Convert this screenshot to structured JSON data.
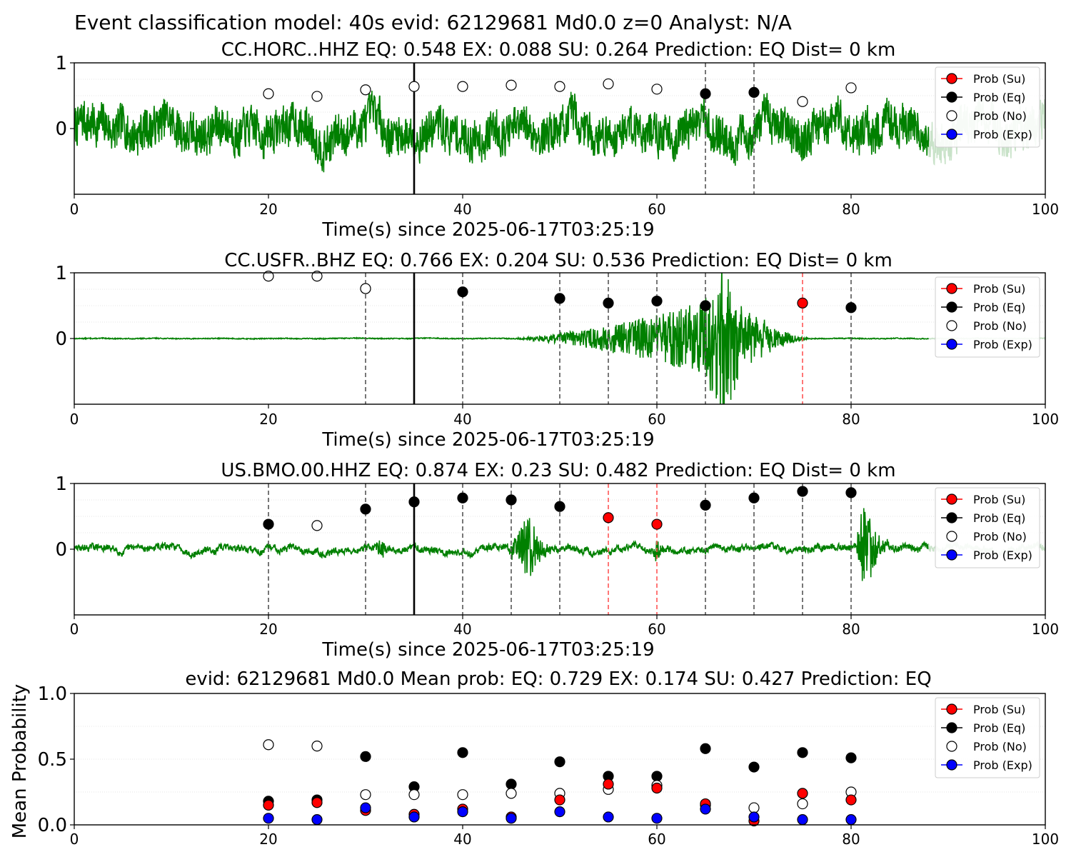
{
  "title": "Event classification model: 40s evid: 62129681 Md0.0 z=0 Analyst: N/A",
  "colors": {
    "waveform": "#008000",
    "waveform_faded": "#c8e2c8",
    "su": "#ff0000",
    "eq": "#000000",
    "no": "#ffffff",
    "exp": "#0000ff",
    "su_line": "#ff5555",
    "eq_line": "#555555"
  },
  "legend": [
    "Prob (Su)",
    "Prob (Eq)",
    "Prob (No)",
    "Prob (Exp)"
  ],
  "chart_data": [
    {
      "type": "scatter",
      "title": "CC.HORC..HHZ   EQ: 0.548  EX: 0.088  SU: 0.264   Prediction: EQ    Dist= 0 km",
      "xlabel": "Time(s) since 2025-06-17T03:25:19",
      "ylabel": "",
      "xlim": [
        0,
        100
      ],
      "ylim": [
        -1,
        1
      ],
      "x_ticks": [
        "0",
        "20",
        "40",
        "60",
        "80",
        "100"
      ],
      "y_ticks": [
        "0",
        "1"
      ],
      "pick_time": 35,
      "dashed_eq": [
        65,
        70
      ],
      "dashed_su": [],
      "trace": {
        "style": "noisy",
        "seed": 7,
        "noise": 0.26,
        "low": 0.22,
        "bursts": []
      },
      "points": [
        {
          "x": 20,
          "y": 0.53,
          "class": "no"
        },
        {
          "x": 25,
          "y": 0.49,
          "class": "no"
        },
        {
          "x": 30,
          "y": 0.59,
          "class": "no"
        },
        {
          "x": 35,
          "y": 0.64,
          "class": "no"
        },
        {
          "x": 40,
          "y": 0.64,
          "class": "no"
        },
        {
          "x": 45,
          "y": 0.66,
          "class": "no"
        },
        {
          "x": 50,
          "y": 0.64,
          "class": "no"
        },
        {
          "x": 55,
          "y": 0.68,
          "class": "no"
        },
        {
          "x": 60,
          "y": 0.6,
          "class": "no"
        },
        {
          "x": 65,
          "y": 0.53,
          "class": "eq"
        },
        {
          "x": 70,
          "y": 0.55,
          "class": "eq"
        },
        {
          "x": 75,
          "y": 0.41,
          "class": "no"
        },
        {
          "x": 80,
          "y": 0.62,
          "class": "no"
        }
      ]
    },
    {
      "type": "scatter",
      "title": "CC.USFR..BHZ   EQ: 0.766  EX: 0.204  SU: 0.536   Prediction: EQ    Dist= 0 km",
      "xlabel": "Time(s) since 2025-06-17T03:25:19",
      "ylabel": "",
      "xlim": [
        0,
        100
      ],
      "ylim": [
        -1,
        1
      ],
      "x_ticks": [
        "0",
        "20",
        "40",
        "60",
        "80",
        "100"
      ],
      "y_ticks": [
        "0",
        "1"
      ],
      "pick_time": 35,
      "dashed_eq": [
        30,
        40,
        50,
        55,
        60,
        65,
        80
      ],
      "dashed_su": [
        75
      ],
      "trace": {
        "style": "quiet",
        "seed": 13,
        "noise": 0.006,
        "low": 0.004,
        "bursts": [
          {
            "start": 44,
            "peak": 66,
            "end": 76,
            "amp": 0.62,
            "shape": "ramp"
          },
          {
            "start": 64.5,
            "peak": 66.5,
            "end": 72,
            "amp": 1.0,
            "shape": "spike"
          }
        ]
      },
      "points": [
        {
          "x": 20,
          "y": 0.95,
          "class": "no"
        },
        {
          "x": 25,
          "y": 0.95,
          "class": "no"
        },
        {
          "x": 30,
          "y": 0.76,
          "class": "eq"
        },
        {
          "x": 30,
          "y": 0.76,
          "class": "no"
        },
        {
          "x": 40,
          "y": 0.71,
          "class": "eq"
        },
        {
          "x": 50,
          "y": 0.61,
          "class": "eq"
        },
        {
          "x": 55,
          "y": 0.54,
          "class": "eq"
        },
        {
          "x": 60,
          "y": 0.57,
          "class": "eq"
        },
        {
          "x": 65,
          "y": 0.5,
          "class": "eq"
        },
        {
          "x": 75,
          "y": 0.54,
          "class": "su"
        },
        {
          "x": 80,
          "y": 0.47,
          "class": "eq"
        }
      ]
    },
    {
      "type": "scatter",
      "title": "US.BMO.00.HHZ   EQ: 0.874  EX: 0.23  SU: 0.482   Prediction: EQ    Dist= 0 km",
      "xlabel": "Time(s) since 2025-06-17T03:25:19",
      "ylabel": "",
      "xlim": [
        0,
        100
      ],
      "ylim": [
        -1,
        1
      ],
      "x_ticks": [
        "0",
        "20",
        "40",
        "60",
        "80",
        "100"
      ],
      "y_ticks": [
        "0",
        "1"
      ],
      "pick_time": 35,
      "dashed_eq": [
        20,
        30,
        40,
        45,
        50,
        65,
        70,
        75,
        80
      ],
      "dashed_su": [
        55,
        60
      ],
      "trace": {
        "style": "quiet",
        "seed": 29,
        "noise": 0.035,
        "low": 0.06,
        "bursts": [
          {
            "start": 44.5,
            "peak": 47,
            "end": 50,
            "amp": 0.5,
            "shape": "spike"
          },
          {
            "start": 80.5,
            "peak": 81.5,
            "end": 84,
            "amp": 1.0,
            "shape": "spike"
          },
          {
            "start": 31,
            "peak": 31.5,
            "end": 32.5,
            "amp": 0.28,
            "shape": "spike"
          },
          {
            "start": 59.5,
            "peak": 60,
            "end": 61,
            "amp": 0.24,
            "shape": "spike"
          }
        ]
      },
      "points": [
        {
          "x": 20,
          "y": 0.38,
          "class": "eq"
        },
        {
          "x": 25,
          "y": 0.36,
          "class": "no"
        },
        {
          "x": 30,
          "y": 0.61,
          "class": "eq"
        },
        {
          "x": 35,
          "y": 0.72,
          "class": "eq"
        },
        {
          "x": 40,
          "y": 0.78,
          "class": "eq"
        },
        {
          "x": 45,
          "y": 0.75,
          "class": "eq"
        },
        {
          "x": 50,
          "y": 0.65,
          "class": "eq"
        },
        {
          "x": 55,
          "y": 0.48,
          "class": "su"
        },
        {
          "x": 60,
          "y": 0.38,
          "class": "su"
        },
        {
          "x": 65,
          "y": 0.67,
          "class": "eq"
        },
        {
          "x": 70,
          "y": 0.78,
          "class": "eq"
        },
        {
          "x": 75,
          "y": 0.88,
          "class": "eq"
        },
        {
          "x": 80,
          "y": 0.86,
          "class": "eq"
        }
      ]
    },
    {
      "type": "scatter",
      "title": "evid: 62129681  Md0.0   Mean prob:   EQ: 0.729  EX: 0.174  SU: 0.427   Prediction: EQ",
      "xlabel": "",
      "ylabel": "Mean Probability",
      "xlim": [
        0,
        100
      ],
      "ylim": [
        0,
        1
      ],
      "x_ticks": [
        "0",
        "20",
        "40",
        "60",
        "80",
        "100"
      ],
      "y_ticks": [
        "0.0",
        "0.5",
        "1.0"
      ],
      "x": [
        20,
        25,
        30,
        35,
        40,
        45,
        50,
        55,
        60,
        65,
        70,
        75,
        80
      ],
      "series": [
        {
          "name": "Prob (Eq)",
          "class": "eq",
          "values": [
            0.18,
            0.19,
            0.52,
            0.29,
            0.55,
            0.31,
            0.48,
            0.37,
            0.37,
            0.58,
            0.44,
            0.55,
            0.51
          ]
        },
        {
          "name": "Prob (No)",
          "class": "no",
          "values": [
            0.61,
            0.6,
            0.23,
            0.23,
            0.23,
            0.24,
            0.24,
            0.27,
            0.3,
            0.15,
            0.13,
            0.16,
            0.25
          ]
        },
        {
          "name": "Prob (Su)",
          "class": "su",
          "values": [
            0.15,
            0.17,
            0.11,
            0.08,
            0.12,
            0.06,
            0.19,
            0.31,
            0.28,
            0.16,
            0.03,
            0.24,
            0.19
          ]
        },
        {
          "name": "Prob (Exp)",
          "class": "exp",
          "values": [
            0.05,
            0.04,
            0.13,
            0.06,
            0.1,
            0.05,
            0.1,
            0.06,
            0.05,
            0.12,
            0.06,
            0.04,
            0.04
          ]
        }
      ]
    }
  ]
}
